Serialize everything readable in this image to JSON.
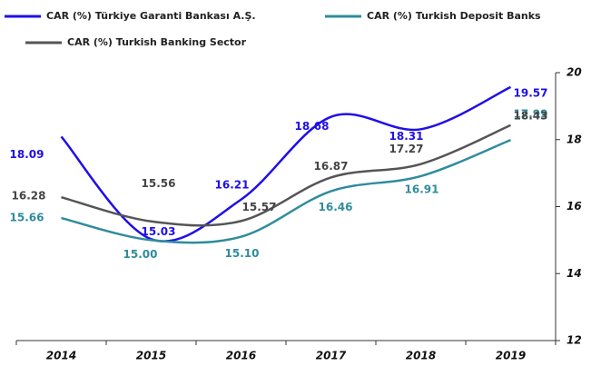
{
  "chart_data": {
    "type": "line",
    "categories": [
      "2014",
      "2015",
      "2016",
      "2017",
      "2018",
      "2019"
    ],
    "series": [
      {
        "name": "CAR (%) Türkiye Garanti Bankası A.Ş.",
        "color": "#1f0fe8",
        "values": [
          18.09,
          15.03,
          16.21,
          18.68,
          18.31,
          19.57
        ],
        "value_labels": [
          "18.09",
          "15.03",
          "16.21",
          "18.68",
          "18.31",
          "19.57"
        ]
      },
      {
        "name": "CAR (%) Turkish Deposit Banks",
        "color": "#2f8c9c",
        "values": [
          15.66,
          15.0,
          15.1,
          16.46,
          16.91,
          17.99
        ],
        "value_labels": [
          "15.66",
          "15.00",
          "15.10",
          "16.46",
          "16.91",
          "17.99"
        ]
      },
      {
        "name": "CAR (%) Turkish Banking Sector",
        "color": "#555555",
        "values": [
          16.28,
          15.56,
          15.57,
          16.87,
          17.27,
          18.43
        ],
        "value_labels": [
          "16.28",
          "15.56",
          "15.57",
          "16.87",
          "17.27",
          "18.43"
        ]
      }
    ],
    "ylim": [
      12,
      20
    ],
    "yticks": [
      12,
      14,
      16,
      18,
      20
    ],
    "y_axis_side": "right",
    "smooth": true
  }
}
